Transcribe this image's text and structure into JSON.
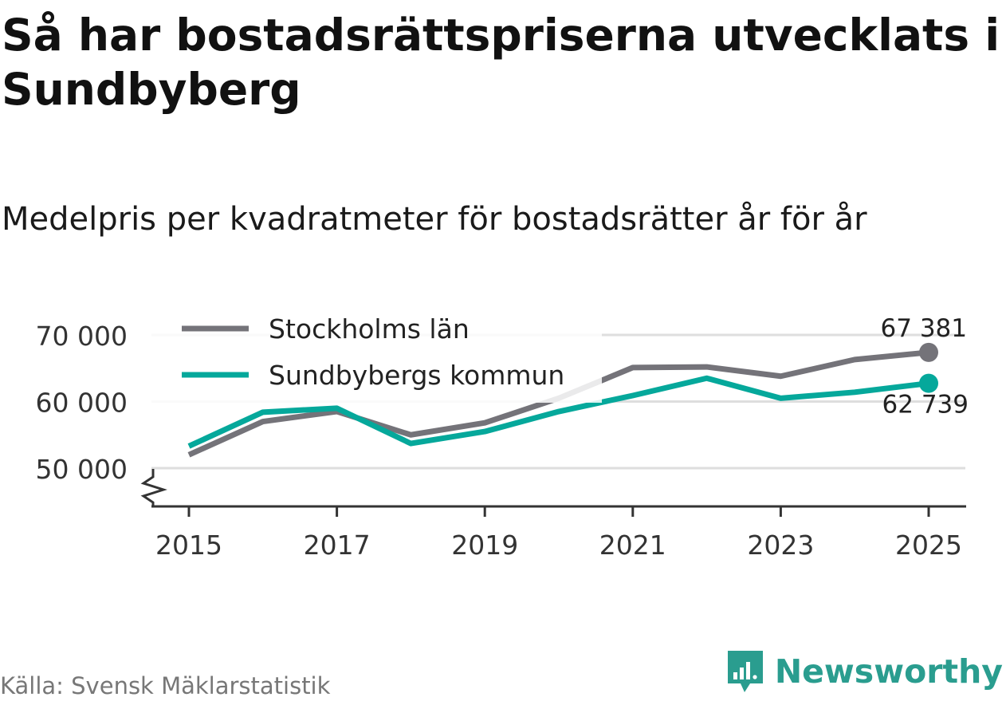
{
  "header": {
    "title": "Så har bostadsrättspriserna utvecklats i Sundbyberg",
    "subtitle": "Medelpris per kvadratmeter för bostadsrätter år för år"
  },
  "footer": {
    "source": "Källa: Svensk Mäklarstatistik",
    "brand": "Newsworthy"
  },
  "colors": {
    "stockholm": "#747379",
    "sundbyberg": "#05a89b",
    "grid": "#dedede",
    "brand": "#2a9d8f"
  },
  "chart_data": {
    "type": "line",
    "title": "Så har bostadsrättspriserna utvecklats i Sundbyberg",
    "subtitle": "Medelpris per kvadratmeter för bostadsrätter år för år",
    "xlabel": "",
    "ylabel": "",
    "x": [
      2015,
      2016,
      2017,
      2018,
      2019,
      2020,
      2021,
      2022,
      2023,
      2024,
      2025
    ],
    "x_ticks": [
      "2015",
      "2017",
      "2019",
      "2021",
      "2023",
      "2025"
    ],
    "y_ticks": [
      "50 000",
      "60 000",
      "70 000"
    ],
    "ylim": [
      44500,
      72000
    ],
    "y_axis_break": true,
    "grid": true,
    "legend": "top-left",
    "series": [
      {
        "name": "Stockholms län",
        "values": [
          52000,
          57000,
          58500,
          55000,
          56800,
          60500,
          65100,
          65200,
          63800,
          66300,
          67381
        ],
        "end_label": "67 381"
      },
      {
        "name": "Sundbybergs kommun",
        "values": [
          53300,
          58400,
          59000,
          53700,
          55500,
          58500,
          60900,
          63500,
          60500,
          61400,
          62739
        ],
        "end_label": "62 739"
      }
    ]
  }
}
